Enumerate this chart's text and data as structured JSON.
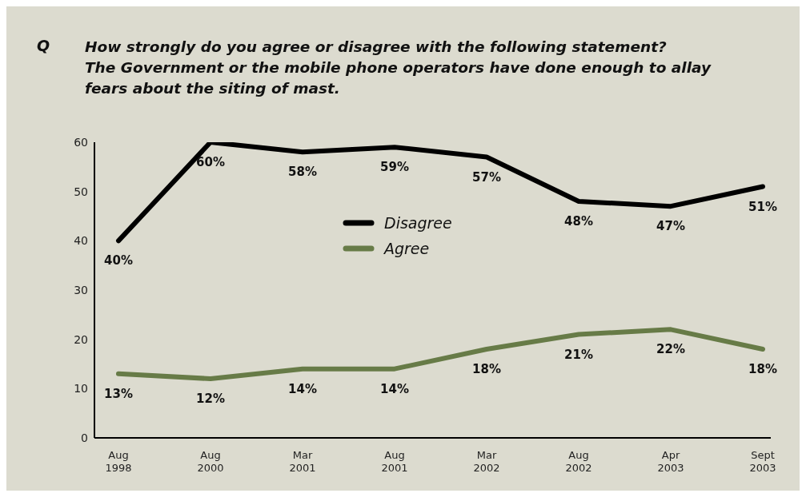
{
  "chart_data": {
    "type": "line",
    "title": "How strongly do you agree or disagree with the following statement?\nThe Government or the mobile phone operators have done enough to allay\nfears about the siting of mast.",
    "annotations": [
      "Q"
    ],
    "categories": [
      "Aug\n1998",
      "Aug\n2000",
      "Mar\n2001",
      "Aug\n2001",
      "Mar\n2002",
      "Aug\n2002",
      "Apr\n2003",
      "Sept\n2003"
    ],
    "series": [
      {
        "name": "Disagree",
        "color": "#000000",
        "values": [
          40,
          60,
          58,
          59,
          57,
          48,
          47,
          51
        ],
        "value_labels": [
          "40%",
          "60%",
          "58%",
          "59%",
          "57%",
          "48%",
          "47%",
          "51%"
        ]
      },
      {
        "name": "Agree",
        "color": "#677b47",
        "values": [
          13,
          12,
          14,
          14,
          18,
          21,
          22,
          18
        ],
        "value_labels": [
          "13%",
          "12%",
          "14%",
          "14%",
          "18%",
          "21%",
          "22%",
          "18%"
        ]
      }
    ],
    "ylim": [
      0,
      60
    ],
    "yticks": [
      0,
      10,
      20,
      30,
      40,
      50,
      60
    ],
    "grid": false,
    "legend": "top",
    "marker": "none",
    "line_style": "solid"
  }
}
